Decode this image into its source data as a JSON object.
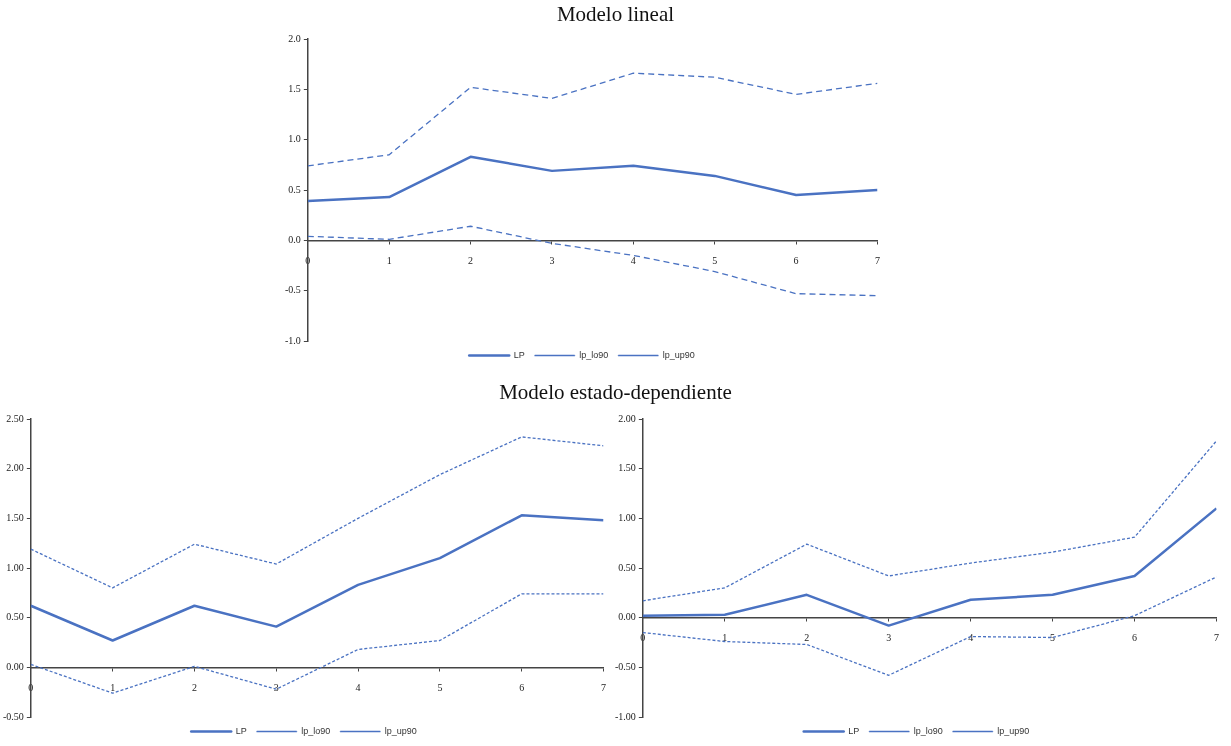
{
  "chart_data": [
    {
      "type": "line",
      "title": "Modelo lineal",
      "x": [
        0,
        1,
        2,
        3,
        4,
        5,
        6,
        7
      ],
      "xlim": [
        0,
        7
      ],
      "xticks": [
        0,
        1,
        2,
        3,
        4,
        5,
        6,
        7
      ],
      "ylim": [
        -1,
        2
      ],
      "yticks": [
        {
          "value": -1,
          "label": "-1.0"
        },
        {
          "value": -0.5,
          "label": "-0.5"
        },
        {
          "value": 0,
          "label": "0.0"
        },
        {
          "value": 0.5,
          "label": "0.5"
        },
        {
          "value": 1,
          "label": "1.0"
        },
        {
          "value": 1.5,
          "label": "1.5"
        },
        {
          "value": 2,
          "label": "2.0"
        }
      ],
      "grid": false,
      "legend": "bottom",
      "marker": "none",
      "series": [
        {
          "name": "LP",
          "color": "#4a72c2",
          "line_style": "solid",
          "values": [
            0.39,
            0.43,
            0.83,
            0.69,
            0.74,
            0.64,
            0.45,
            0.5
          ]
        },
        {
          "name": "lp_lo90",
          "color": "#4a72c2",
          "line_style": "dashed",
          "values": [
            0.04,
            0.01,
            0.14,
            -0.03,
            -0.15,
            -0.31,
            -0.53,
            -0.55
          ]
        },
        {
          "name": "lp_up90",
          "color": "#4a72c2",
          "line_style": "dashed",
          "values": [
            0.74,
            0.85,
            1.52,
            1.41,
            1.66,
            1.62,
            1.45,
            1.56
          ]
        }
      ]
    },
    {
      "type": "line",
      "title": "Modelo estado-dependiente",
      "x": [
        0,
        1,
        2,
        3,
        4,
        5,
        6,
        7
      ],
      "xlim": [
        0,
        7
      ],
      "xticks": [
        0,
        1,
        2,
        3,
        4,
        5,
        6,
        7
      ],
      "ylim": [
        -0.5,
        2.5
      ],
      "yticks": [
        {
          "value": -0.5,
          "label": "-0.50"
        },
        {
          "value": 0,
          "label": "0.00"
        },
        {
          "value": 0.5,
          "label": "0.50"
        },
        {
          "value": 1,
          "label": "1.00"
        },
        {
          "value": 1.5,
          "label": "1.50"
        },
        {
          "value": 2,
          "label": "2.00"
        },
        {
          "value": 2.5,
          "label": "2.50"
        }
      ],
      "grid": false,
      "legend": "bottom",
      "marker": "none",
      "series": [
        {
          "name": "LP",
          "color": "#4a72c2",
          "line_style": "solid",
          "values": [
            0.62,
            0.27,
            0.62,
            0.41,
            0.83,
            1.1,
            1.53,
            1.48
          ]
        },
        {
          "name": "lp_lo90",
          "color": "#4a72c2",
          "line_style": "dotted",
          "values": [
            0.03,
            -0.26,
            0.01,
            -0.22,
            0.18,
            0.27,
            0.74,
            0.74
          ]
        },
        {
          "name": "lp_up90",
          "color": "#4a72c2",
          "line_style": "dotted",
          "values": [
            1.19,
            0.8,
            1.24,
            1.04,
            1.5,
            1.94,
            2.32,
            2.23
          ]
        }
      ]
    },
    {
      "type": "line",
      "x": [
        0,
        1,
        2,
        3,
        4,
        5,
        6,
        7
      ],
      "xlim": [
        0,
        7
      ],
      "xticks": [
        0,
        1,
        2,
        3,
        4,
        5,
        6,
        7
      ],
      "ylim": [
        -1,
        2
      ],
      "yticks": [
        {
          "value": -1,
          "label": "-1.00"
        },
        {
          "value": -0.5,
          "label": "-0.50"
        },
        {
          "value": 0,
          "label": "0.00"
        },
        {
          "value": 0.5,
          "label": "0.50"
        },
        {
          "value": 1,
          "label": "1.00"
        },
        {
          "value": 1.5,
          "label": "1.50"
        },
        {
          "value": 2,
          "label": "2.00"
        }
      ],
      "grid": false,
      "legend": "bottom",
      "marker": "none",
      "series": [
        {
          "name": "LP",
          "color": "#4a72c2",
          "line_style": "solid",
          "values": [
            0.02,
            0.03,
            0.23,
            -0.08,
            0.18,
            0.23,
            0.42,
            1.1
          ]
        },
        {
          "name": "lp_lo90",
          "color": "#4a72c2",
          "line_style": "dotted",
          "values": [
            -0.15,
            -0.24,
            -0.27,
            -0.58,
            -0.19,
            -0.2,
            0.02,
            0.41
          ]
        },
        {
          "name": "lp_up90",
          "color": "#4a72c2",
          "line_style": "dotted",
          "values": [
            0.17,
            0.3,
            0.74,
            0.42,
            0.55,
            0.66,
            0.81,
            1.78
          ]
        }
      ]
    }
  ]
}
